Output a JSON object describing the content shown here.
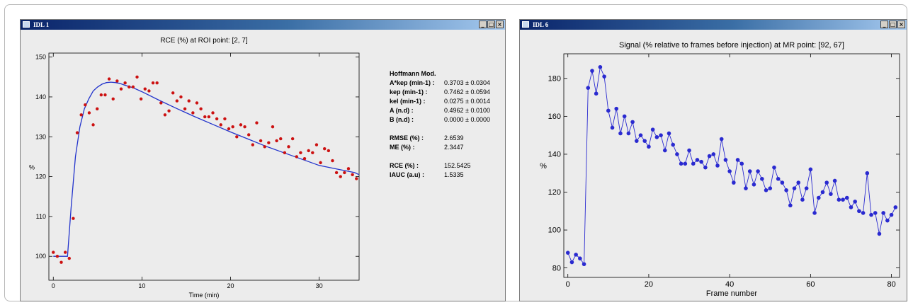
{
  "windows": [
    {
      "title": "IDL 1",
      "buttons": {
        "minimize": "_",
        "maximize": "□",
        "close": "×"
      }
    },
    {
      "title": "IDL 6",
      "buttons": {
        "minimize": "_",
        "maximize": "□",
        "close": "×"
      }
    }
  ],
  "params": {
    "title": "Hoffmann Mod.",
    "group1": [
      {
        "label": "A*kep (min-1) :",
        "value": "0.3703 ± 0.0304"
      },
      {
        "label": "kep (min-1) :",
        "value": "0.7462 ± 0.0594"
      },
      {
        "label": "kel (min-1) :",
        "value": "0.0275 ± 0.0014"
      },
      {
        "label": "A (n.d) :",
        "value": "0.4962 ± 0.0100"
      },
      {
        "label": "B (n.d) :",
        "value": "0.0000 ± 0.0000"
      }
    ],
    "group2": [
      {
        "label": "RMSE (%) :",
        "value": "2.6539"
      },
      {
        "label": "ME (%) :",
        "value": "2.3447"
      }
    ],
    "group3": [
      {
        "label": "RCE (%) :",
        "value": "152.5425"
      },
      {
        "label": "IAUC (a.u) :",
        "value": "1.5335"
      }
    ]
  },
  "chart_data": [
    {
      "type": "scatter",
      "title": "RCE (%) at ROI point: [2, 7]",
      "xlabel": "Time (min)",
      "ylabel": "%",
      "xlim": [
        -0.5,
        34.5
      ],
      "ylim": [
        94,
        151
      ],
      "xticks": [
        0,
        10,
        20,
        30
      ],
      "yticks": [
        100,
        110,
        120,
        130,
        140,
        150
      ],
      "colors": {
        "points": "#cc1111",
        "fit": "#2233cc"
      },
      "series": [
        {
          "x": [
            0.0,
            0.45,
            0.9,
            1.35,
            1.8,
            2.25,
            2.7,
            3.15,
            3.6,
            4.05,
            4.5,
            4.95,
            5.4,
            5.85,
            6.3,
            6.75,
            7.2,
            7.65,
            8.1,
            8.55,
            9.0,
            9.45,
            9.9,
            10.35,
            10.8,
            11.25,
            11.7,
            12.15,
            12.6,
            13.05,
            13.5,
            13.95,
            14.4,
            14.85,
            15.3,
            15.75,
            16.2,
            16.65,
            17.1,
            17.55,
            18.0,
            18.45,
            18.9,
            19.35,
            19.8,
            20.25,
            20.7,
            21.15,
            21.6,
            22.05,
            22.5,
            22.95,
            23.4,
            23.85,
            24.3,
            24.75,
            25.2,
            25.65,
            26.1,
            26.55,
            27.0,
            27.45,
            27.9,
            28.35,
            28.8,
            29.25,
            29.7,
            30.15,
            30.6,
            31.05,
            31.5,
            31.95,
            32.4,
            32.85,
            33.3,
            33.75,
            34.2
          ],
          "y": [
            101,
            100,
            98.5,
            101,
            99.5,
            109.5,
            131,
            135.5,
            138,
            136,
            133,
            137,
            140.5,
            140.5,
            144.5,
            139.5,
            144,
            142,
            143.5,
            142.5,
            142.5,
            145,
            139.5,
            142,
            141.5,
            143.5,
            143.5,
            138.5,
            135.5,
            136.5,
            141,
            139,
            140,
            137,
            139,
            136,
            138.5,
            137,
            135,
            135,
            136,
            134.5,
            133,
            134.5,
            132,
            132.5,
            130,
            133,
            132.5,
            130.5,
            128,
            133.5,
            129,
            127.5,
            128.5,
            132.5,
            129,
            129.5,
            126,
            127.5,
            129.5,
            125,
            126,
            124.5,
            126.5,
            126,
            128,
            123.5,
            127,
            126.5,
            124,
            121,
            120,
            121,
            122,
            120.5,
            119.5
          ]
        }
      ],
      "fit": {
        "x": [
          0,
          1.3,
          1.6,
          2.0,
          2.5,
          3.0,
          3.5,
          4.0,
          4.5,
          5.0,
          5.5,
          6.0,
          6.5,
          7.0,
          7.5,
          8.0,
          9.0,
          10.0,
          12.0,
          14.0,
          16.0,
          18.0,
          20.0,
          22.0,
          24.0,
          26.0,
          28.0,
          30.0,
          32.0,
          34.0,
          34.5
        ],
        "y": [
          100,
          100,
          100,
          112,
          125,
          132.5,
          137,
          139.5,
          141.5,
          142.5,
          143.2,
          143.6,
          143.7,
          143.6,
          143.4,
          143.0,
          142.3,
          141.3,
          139.1,
          137.0,
          135.0,
          133.1,
          131.2,
          129.4,
          127.6,
          126.0,
          124.4,
          122.8,
          121.9,
          121.0,
          120.5
        ]
      }
    },
    {
      "type": "line",
      "title": "Signal (% relative to frames before injection) at MR point: [92, 67]",
      "xlabel": "Frame number",
      "ylabel": "%",
      "xlim": [
        -1,
        82
      ],
      "ylim": [
        75,
        193
      ],
      "xticks": [
        0,
        20,
        40,
        60,
        80
      ],
      "yticks": [
        80,
        100,
        120,
        140,
        160,
        180
      ],
      "colors": {
        "line": "#2a2ad0"
      },
      "series": [
        {
          "x": [
            0,
            1,
            2,
            3,
            4,
            5,
            6,
            7,
            8,
            9,
            10,
            11,
            12,
            13,
            14,
            15,
            16,
            17,
            18,
            19,
            20,
            21,
            22,
            23,
            24,
            25,
            26,
            27,
            28,
            29,
            30,
            31,
            32,
            33,
            34,
            35,
            36,
            37,
            38,
            39,
            40,
            41,
            42,
            43,
            44,
            45,
            46,
            47,
            48,
            49,
            50,
            51,
            52,
            53,
            54,
            55,
            56,
            57,
            58,
            59,
            60,
            61,
            62,
            63,
            64,
            65,
            66,
            67,
            68,
            69,
            70,
            71,
            72,
            73,
            74,
            75,
            76,
            77,
            78,
            79,
            80,
            81
          ],
          "y": [
            88,
            83,
            87,
            85,
            82,
            175,
            184,
            172,
            186,
            181,
            163,
            154,
            164,
            151,
            160,
            151,
            157,
            147,
            150,
            147,
            144,
            153,
            149,
            150,
            142,
            151,
            145,
            140,
            135,
            135,
            142,
            135,
            137,
            136,
            133,
            139,
            140,
            134,
            148,
            137,
            131,
            125,
            137,
            135,
            122,
            131,
            124,
            131,
            127,
            121,
            122,
            133,
            127,
            125,
            121,
            113,
            122,
            125,
            116,
            122,
            132,
            109,
            117,
            120,
            125,
            119,
            126,
            116,
            116,
            117,
            112,
            115,
            110,
            109,
            130,
            108,
            109,
            98,
            109,
            105,
            108,
            112
          ]
        }
      ]
    }
  ]
}
